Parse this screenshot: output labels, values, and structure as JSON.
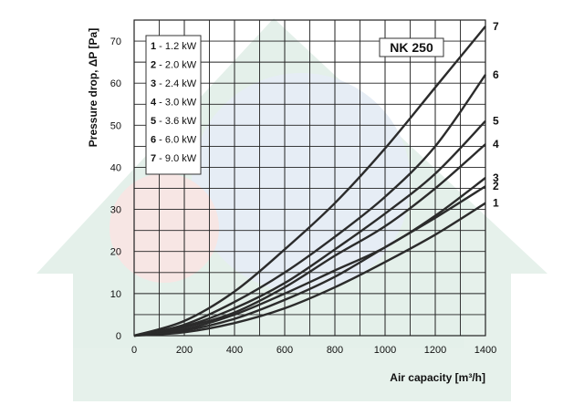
{
  "chart_data": {
    "type": "line",
    "title": "NK 250",
    "xlabel": "Air capacity [m³/h]",
    "ylabel": "Pressure drop, ΔP [Pa]",
    "xlim": [
      0,
      1400
    ],
    "ylim": [
      0,
      75
    ],
    "xticks": [
      "0",
      "200",
      "400",
      "600",
      "800",
      "1000",
      "1200",
      "1400"
    ],
    "yticks": [
      "0",
      "10",
      "20",
      "30",
      "40",
      "50",
      "60",
      "70"
    ],
    "grid": true,
    "legend_position": "top-left",
    "legend": [
      {
        "num": "1",
        "text": " - 1.2 kW"
      },
      {
        "num": "2",
        "text": " - 2.0 kW"
      },
      {
        "num": "3",
        "text": " - 2.4 kW"
      },
      {
        "num": "4",
        "text": " - 3.0 kW"
      },
      {
        "num": "5",
        "text": " - 3.6 kW"
      },
      {
        "num": "6",
        "text": " - 6.0 kW"
      },
      {
        "num": "7",
        "text": " - 9.0 kW"
      }
    ],
    "series": [
      {
        "name": "1",
        "x": [
          0,
          200,
          400,
          600,
          800,
          1000,
          1200,
          1400
        ],
        "y": [
          0,
          0.8,
          3,
          6.5,
          11.5,
          17.5,
          24,
          31.5
        ]
      },
      {
        "name": "2",
        "x": [
          0,
          200,
          400,
          600,
          800,
          1000,
          1200,
          1400
        ],
        "y": [
          0,
          1.2,
          4,
          8.5,
          14,
          21,
          28,
          35.5
        ]
      },
      {
        "name": "3",
        "x": [
          0,
          200,
          400,
          600,
          800,
          1000,
          1200,
          1400
        ],
        "y": [
          0,
          1.5,
          5,
          10,
          15.5,
          21,
          28.5,
          37.5
        ]
      },
      {
        "name": "4",
        "x": [
          0,
          200,
          400,
          600,
          800,
          1000,
          1200,
          1400
        ],
        "y": [
          0,
          2,
          5.5,
          11.5,
          19,
          26,
          35,
          45.5
        ]
      },
      {
        "name": "5",
        "x": [
          0,
          200,
          400,
          600,
          800,
          1000,
          1200,
          1400
        ],
        "y": [
          0,
          2.2,
          6.5,
          12.5,
          20.5,
          29,
          38.5,
          51
        ]
      },
      {
        "name": "6",
        "x": [
          0,
          200,
          400,
          600,
          800,
          1000,
          1200,
          1400
        ],
        "y": [
          0,
          2.6,
          8,
          15,
          23.5,
          33,
          45,
          62
        ]
      },
      {
        "name": "7",
        "x": [
          0,
          200,
          400,
          600,
          800,
          1000,
          1200,
          1400
        ],
        "y": [
          0,
          3.5,
          10.5,
          20.5,
          31.5,
          44.5,
          59,
          73.5
        ]
      }
    ]
  }
}
